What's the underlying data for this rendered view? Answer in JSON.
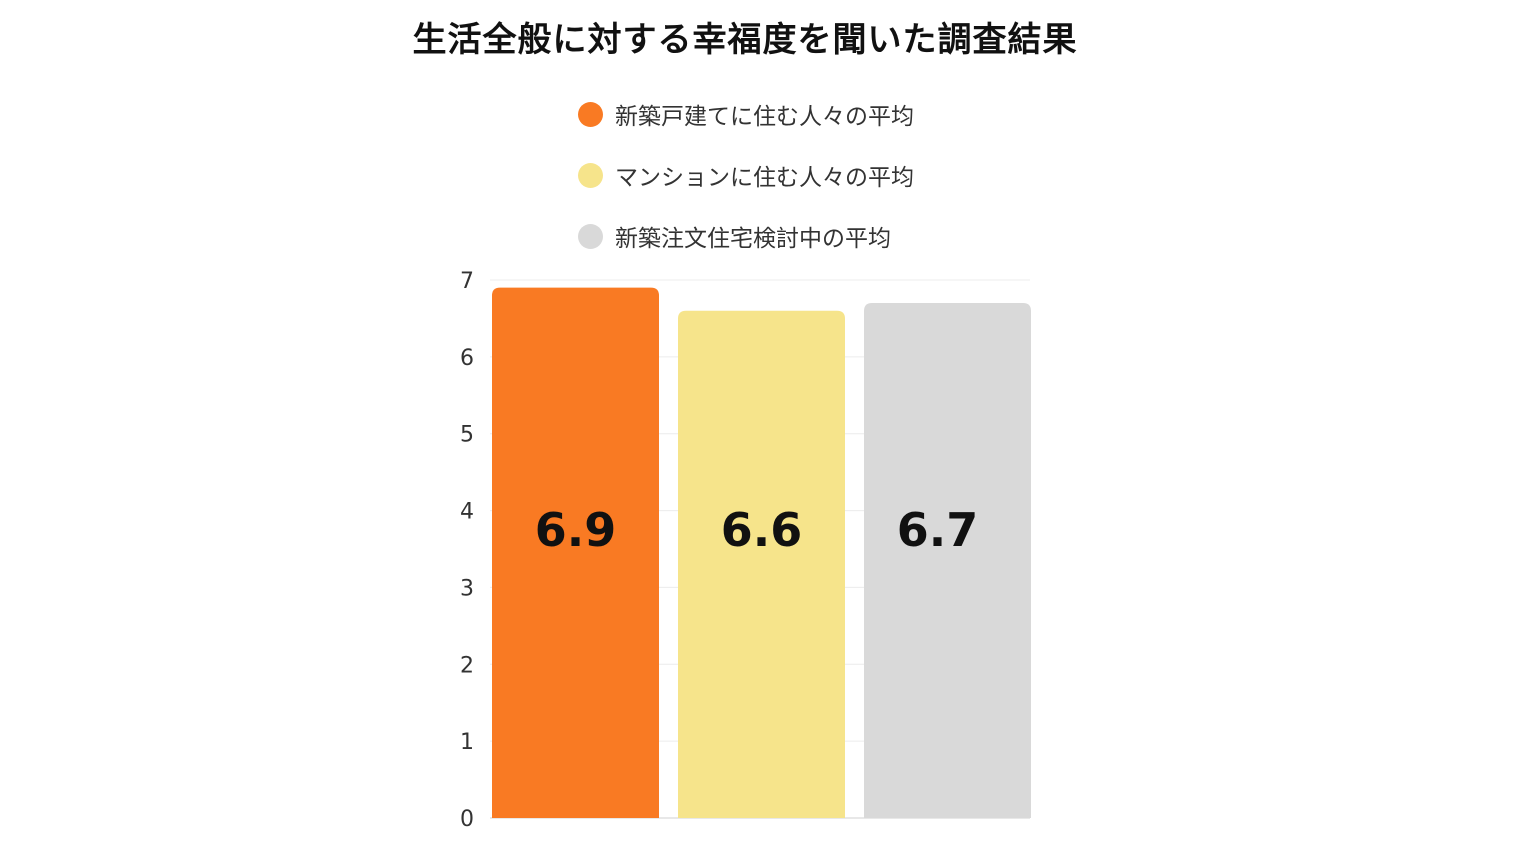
{
  "chart_data": {
    "type": "bar",
    "title": "生活全般に対する幸福度を聞いた調査結果",
    "xlabel": "",
    "ylabel": "",
    "ylim": [
      0,
      7
    ],
    "yticks": [
      0,
      1,
      2,
      3,
      4,
      5,
      6,
      7
    ],
    "grid": true,
    "legend_position": "top",
    "series": [
      {
        "name": "新築戸建てに住む人々の平均",
        "value": 6.9,
        "label": "6.9",
        "color": "#F97A23"
      },
      {
        "name": "マンションに住む人々の平均",
        "value": 6.6,
        "label": "6.6",
        "color": "#F6E48B"
      },
      {
        "name": "新築注文住宅検討中の平均",
        "value": 6.7,
        "label": "6.7",
        "color": "#D9D9D9"
      }
    ]
  }
}
